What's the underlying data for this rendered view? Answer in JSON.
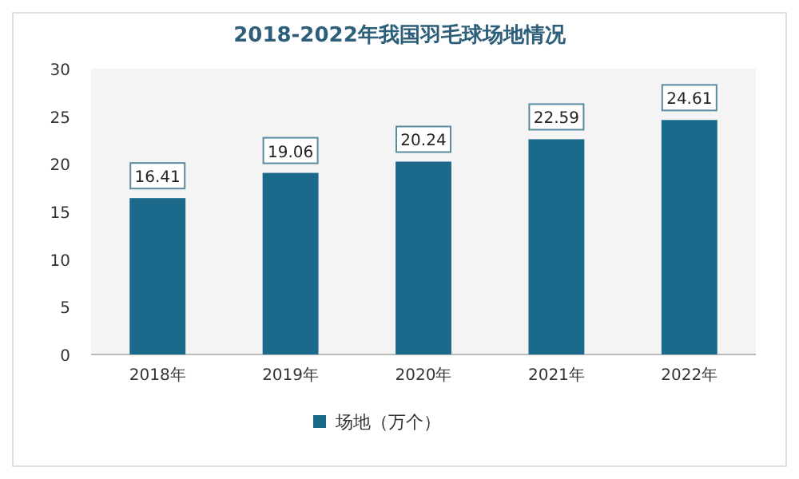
{
  "chart_data": {
    "type": "bar",
    "title": "2018-2022年我国羽毛球场地情况",
    "categories": [
      "2018年",
      "2019年",
      "2020年",
      "2021年",
      "2022年"
    ],
    "series": [
      {
        "name": "场地（万个）",
        "color": "#1b6a8c",
        "values": [
          16.41,
          19.06,
          20.24,
          22.59,
          24.61
        ]
      }
    ],
    "ylim": [
      0,
      30
    ],
    "yticks": [
      0,
      5,
      10,
      15,
      20,
      25,
      30
    ],
    "data_labels": true,
    "legend": "bottom",
    "grid": false
  }
}
